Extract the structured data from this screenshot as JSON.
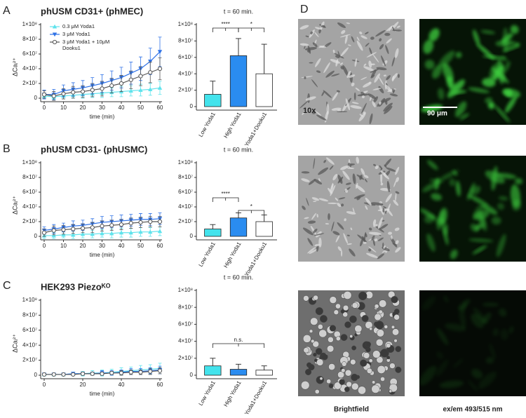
{
  "chart_data": [
    {
      "type": "line",
      "title": "phUSM CD31+ (phMEC)",
      "xlabel": "time (min)",
      "ylabel": "ΔCaᵢ²⁺",
      "legend": "upper left",
      "x": [
        0,
        5,
        10,
        15,
        20,
        25,
        30,
        35,
        40,
        45,
        50,
        55,
        60
      ],
      "xlim": [
        0,
        60
      ],
      "xticks": [
        0,
        10,
        20,
        30,
        40,
        50,
        60
      ],
      "ylim": [
        0,
        100000000.0
      ],
      "yticks": [
        0,
        {
          "value": 20000000.0,
          "label": "2×10⁷"
        },
        {
          "value": 40000000.0,
          "label": "4×10⁷"
        },
        {
          "value": 60000000.0,
          "label": "6×10⁷"
        },
        {
          "value": 80000000.0,
          "label": "8×10⁷"
        },
        {
          "value": 100000000.0,
          "label": "1×10⁸"
        }
      ],
      "series": [
        {
          "name": "0.3 μM Yoda1",
          "color": "#5fe3ec",
          "marker": "triangle-up",
          "values": [
            3000000.0,
            2000000.0,
            3000000.0,
            4000000.0,
            5000000.0,
            6000000.0,
            7000000.0,
            8000000.0,
            9000000.0,
            10000000.0,
            11000000.0,
            12000000.0,
            14000000.0
          ],
          "errors": [
            3000000.0,
            3000000.0,
            4000000.0,
            4000000.0,
            5000000.0,
            5000000.0,
            6000000.0,
            6000000.0,
            7000000.0,
            7000000.0,
            8000000.0,
            8000000.0,
            9000000.0
          ]
        },
        {
          "name": "3 μM Yoda1",
          "color": "#2f72e6",
          "marker": "triangle-down",
          "values": [
            5000000.0,
            5000000.0,
            10000000.0,
            12000000.0,
            14000000.0,
            17000000.0,
            20000000.0,
            24000000.0,
            28000000.0,
            34000000.0,
            40000000.0,
            50000000.0,
            63000000.0
          ],
          "errors": [
            6000000.0,
            7000000.0,
            8000000.0,
            9000000.0,
            10000000.0,
            11000000.0,
            12000000.0,
            13000000.0,
            14000000.0,
            15000000.0,
            16000000.0,
            18000000.0,
            20000000.0
          ]
        },
        {
          "name": "3 μM Yoda1 + 10μM Dooku1",
          "color": "#555555",
          "marker": "circle-open",
          "values": [
            5000000.0,
            3000000.0,
            6000000.0,
            8000000.0,
            9000000.0,
            11000000.0,
            13000000.0,
            17000000.0,
            20000000.0,
            25000000.0,
            30000000.0,
            35000000.0,
            40000000.0
          ],
          "errors": [
            5000000.0,
            6000000.0,
            7000000.0,
            8000000.0,
            8000000.0,
            9000000.0,
            10000000.0,
            10000000.0,
            11000000.0,
            12000000.0,
            13000000.0,
            14000000.0,
            15000000.0
          ]
        }
      ]
    },
    {
      "type": "bar",
      "title": "t = 60 min.",
      "categories": [
        "Low Yoda1",
        "High Yoda1",
        "Yoda1+Dooku1"
      ],
      "values": [
        15000000.0,
        62000000.0,
        40000000.0
      ],
      "errors": [
        16000000.0,
        21000000.0,
        36000000.0
      ],
      "colors": [
        "#43e3ec",
        "#2a8cf0",
        "#ffffff"
      ],
      "annotations": [
        "****",
        "*"
      ],
      "ylim": [
        0,
        100000000.0
      ],
      "yticks": [
        0,
        {
          "value": 20000000.0,
          "label": "2×10⁷"
        },
        {
          "value": 40000000.0,
          "label": "4×10⁷"
        },
        {
          "value": 60000000.0,
          "label": "6×10⁷"
        },
        {
          "value": 80000000.0,
          "label": "8×10⁷"
        },
        {
          "value": 100000000.0,
          "label": "1×10⁸"
        }
      ]
    },
    {
      "type": "line",
      "title": "phUSM CD31- (phUSMC)",
      "xlabel": "time (min)",
      "ylabel": "ΔCaᵢ²⁺",
      "x": [
        0,
        5,
        10,
        15,
        20,
        25,
        30,
        35,
        40,
        45,
        50,
        55,
        60
      ],
      "xlim": [
        0,
        60
      ],
      "xticks": [
        0,
        10,
        20,
        30,
        40,
        50,
        60
      ],
      "ylim": [
        0,
        100000000.0
      ],
      "yticks": [
        0,
        {
          "value": 20000000.0,
          "label": "2×10⁷"
        },
        {
          "value": 40000000.0,
          "label": "4×10⁷"
        },
        {
          "value": 60000000.0,
          "label": "6×10⁷"
        },
        {
          "value": 80000000.0,
          "label": "8×10⁷"
        },
        {
          "value": 100000000.0,
          "label": "1×10⁸"
        }
      ],
      "series": [
        {
          "color": "#5fe3ec",
          "marker": "triangle-up",
          "values": [
            1000000.0,
            1000000.0,
            2000000.0,
            2000000.0,
            3000000.0,
            3000000.0,
            4000000.0,
            4000000.0,
            5000000.0,
            5000000.0,
            6000000.0,
            6000000.0,
            7000000.0
          ],
          "errors": [
            4000000.0,
            4000000.0,
            4000000.0,
            5000000.0,
            5000000.0,
            5000000.0,
            5000000.0,
            6000000.0,
            6000000.0,
            6000000.0,
            6000000.0,
            6000000.0,
            6000000.0
          ]
        },
        {
          "color": "#2f72e6",
          "marker": "triangle-down",
          "values": [
            8000000.0,
            10000000.0,
            12000000.0,
            14000000.0,
            15000000.0,
            17000000.0,
            19000000.0,
            20000000.0,
            21000000.0,
            22000000.0,
            23000000.0,
            23000000.0,
            24000000.0
          ],
          "errors": [
            5000000.0,
            6000000.0,
            6000000.0,
            7000000.0,
            7000000.0,
            7000000.0,
            8000000.0,
            8000000.0,
            8000000.0,
            8000000.0,
            8000000.0,
            8000000.0,
            8000000.0
          ]
        },
        {
          "color": "#555555",
          "marker": "circle-open",
          "values": [
            5000000.0,
            8000000.0,
            9000000.0,
            10000000.0,
            11000000.0,
            12000000.0,
            14000000.0,
            15000000.0,
            16000000.0,
            18000000.0,
            19000000.0,
            20000000.0,
            20000000.0
          ],
          "errors": [
            5000000.0,
            6000000.0,
            6000000.0,
            6000000.0,
            6000000.0,
            7000000.0,
            7000000.0,
            7000000.0,
            7000000.0,
            7000000.0,
            7000000.0,
            7000000.0,
            7000000.0
          ]
        }
      ]
    },
    {
      "type": "bar",
      "title": "t = 60 min.",
      "categories": [
        "Low Yoda1",
        "High Yoda1",
        "Yoda1+Dooku1"
      ],
      "values": [
        10000000.0,
        25000000.0,
        20000000.0
      ],
      "errors": [
        6000000.0,
        7000000.0,
        9000000.0
      ],
      "colors": [
        "#43e3ec",
        "#2a8cf0",
        "#ffffff"
      ],
      "annotations": [
        "****",
        "*"
      ],
      "ylim": [
        0,
        100000000.0
      ],
      "yticks": [
        0,
        {
          "value": 20000000.0,
          "label": "2×10⁷"
        },
        {
          "value": 40000000.0,
          "label": "4×10⁷"
        },
        {
          "value": 60000000.0,
          "label": "6×10⁷"
        },
        {
          "value": 80000000.0,
          "label": "8×10⁷"
        },
        {
          "value": 100000000.0,
          "label": "1×10⁸"
        }
      ]
    },
    {
      "type": "line",
      "title": "HEK293 Piezoᴷᴼ",
      "xlabel": "time (min)",
      "ylabel": "ΔCaᵢ²⁺",
      "x": [
        0,
        5,
        10,
        15,
        20,
        25,
        30,
        35,
        40,
        45,
        50,
        55,
        60
      ],
      "xlim": [
        0,
        60
      ],
      "xticks": [
        0,
        20,
        40,
        60
      ],
      "ylim": [
        0,
        100000000.0
      ],
      "yticks": [
        0,
        {
          "value": 20000000.0,
          "label": "2×10⁷"
        },
        {
          "value": 40000000.0,
          "label": "4×10⁷"
        },
        {
          "value": 60000000.0,
          "label": "6×10⁷"
        },
        {
          "value": 80000000.0,
          "label": "8×10⁷"
        },
        {
          "value": 100000000.0,
          "label": "1×10⁸"
        }
      ],
      "series": [
        {
          "color": "#5fe3ec",
          "marker": "triangle-up",
          "values": [
            1000000.0,
            1000000.0,
            1000000.0,
            2000000.0,
            2000000.0,
            3000000.0,
            3000000.0,
            4000000.0,
            5000000.0,
            6000000.0,
            7000000.0,
            8000000.0,
            9000000.0
          ],
          "errors": [
            1000000.0,
            1000000.0,
            2000000.0,
            2000000.0,
            3000000.0,
            3000000.0,
            4000000.0,
            4000000.0,
            5000000.0,
            5000000.0,
            6000000.0,
            6000000.0,
            7000000.0
          ]
        },
        {
          "color": "#2f72e6",
          "marker": "triangle-down",
          "values": [
            1000000.0,
            1000000.0,
            1000000.0,
            2000000.0,
            2000000.0,
            2000000.0,
            3000000.0,
            3000000.0,
            4000000.0,
            5000000.0,
            5000000.0,
            6000000.0,
            7000000.0
          ],
          "errors": [
            1000000.0,
            1000000.0,
            1000000.0,
            2000000.0,
            2000000.0,
            2000000.0,
            3000000.0,
            3000000.0,
            3000000.0,
            4000000.0,
            4000000.0,
            4000000.0,
            5000000.0
          ]
        },
        {
          "color": "#555555",
          "marker": "circle-open",
          "values": [
            1000000.0,
            1000000.0,
            1000000.0,
            1000000.0,
            2000000.0,
            2000000.0,
            2000000.0,
            3000000.0,
            3000000.0,
            4000000.0,
            4000000.0,
            5000000.0,
            6000000.0
          ],
          "errors": [
            1000000.0,
            1000000.0,
            1000000.0,
            1000000.0,
            2000000.0,
            2000000.0,
            2000000.0,
            2000000.0,
            3000000.0,
            3000000.0,
            3000000.0,
            4000000.0,
            4000000.0
          ]
        }
      ]
    },
    {
      "type": "bar",
      "title": "t = 60 min.",
      "categories": [
        "Low Yoda1",
        "High Yoda1",
        "Yoda1+Dooku1"
      ],
      "values": [
        11000000.0,
        7000000.0,
        6000000.0
      ],
      "errors": [
        9000000.0,
        6000000.0,
        5000000.0
      ],
      "colors": [
        "#43e3ec",
        "#2a8cf0",
        "#ffffff"
      ],
      "annotations": [
        "n.s."
      ],
      "ylim": [
        0,
        100000000.0
      ],
      "yticks": [
        0,
        {
          "value": 20000000.0,
          "label": "2×10⁷"
        },
        {
          "value": 40000000.0,
          "label": "4×10⁷"
        },
        {
          "value": 60000000.0,
          "label": "6×10⁷"
        },
        {
          "value": 80000000.0,
          "label": "8×10⁷"
        },
        {
          "value": 100000000.0,
          "label": "1×10⁸"
        }
      ]
    }
  ],
  "panel_labels": [
    "A",
    "B",
    "C",
    "D"
  ],
  "micrographs": {
    "magnification": "10x",
    "scale_bar": "90 μm",
    "columns": [
      "Brightfield",
      "ex/em 493/515 nm"
    ]
  }
}
